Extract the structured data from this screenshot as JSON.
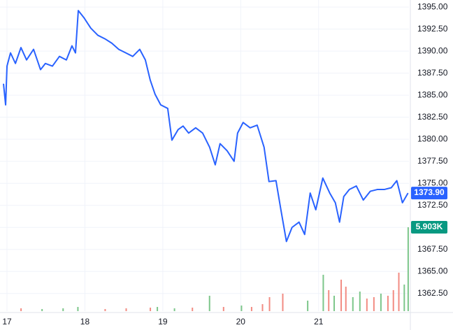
{
  "chart_data": {
    "type": "line",
    "xlim": [
      16.91,
      22.16
    ],
    "xticks": [
      17,
      18,
      19,
      20,
      21
    ],
    "ylim": [
      1360.5,
      1395.8
    ],
    "yticks": [
      {
        "value": 1362.5,
        "label": "1362.50"
      },
      {
        "value": 1365,
        "label": "1365.00"
      },
      {
        "value": 1367.5,
        "label": "1367.50"
      },
      {
        "value": 1370,
        "label": "1370.00"
      },
      {
        "value": 1372.5,
        "label": "1372.50"
      },
      {
        "value": 1375,
        "label": "1375.00"
      },
      {
        "value": 1377.5,
        "label": "1377.50"
      },
      {
        "value": 1380,
        "label": "1380.00"
      },
      {
        "value": 1382.5,
        "label": "1382.50"
      },
      {
        "value": 1385,
        "label": "1385.00"
      },
      {
        "value": 1387.5,
        "label": "1387.50"
      },
      {
        "value": 1390,
        "label": "1390.00"
      },
      {
        "value": 1392.5,
        "label": "1392.50"
      },
      {
        "value": 1395,
        "label": "1395.00"
      }
    ],
    "y2lim": [
      0,
      21890
    ],
    "grid": true,
    "series": [
      {
        "color": "#2962ff",
        "last_label": "1373.90",
        "x": [
          16.955,
          16.982,
          17.0,
          17.045,
          17.108,
          17.179,
          17.251,
          17.341,
          17.43,
          17.493,
          17.583,
          17.673,
          17.762,
          17.834,
          17.879,
          17.915,
          17.987,
          18.076,
          18.166,
          18.256,
          18.345,
          18.435,
          18.525,
          18.614,
          18.704,
          18.776,
          18.839,
          18.901,
          18.973,
          19.063,
          19.117,
          19.197,
          19.26,
          19.332,
          19.422,
          19.511,
          19.601,
          19.673,
          19.735,
          19.825,
          19.915,
          19.96,
          20.031,
          20.121,
          20.211,
          20.3,
          20.363,
          20.453,
          20.516,
          20.587,
          20.659,
          20.749,
          20.821,
          20.892,
          20.964,
          21.054,
          21.143,
          21.215,
          21.269,
          21.323,
          21.395,
          21.484,
          21.574,
          21.664,
          21.753,
          21.843,
          21.933,
          22.004,
          22.076,
          22.148
        ],
        "values": [
          1386.3,
          1383.9,
          1388.3,
          1389.8,
          1388.6,
          1390.4,
          1389.0,
          1390.2,
          1387.9,
          1388.6,
          1388.3,
          1389.4,
          1389.0,
          1390.6,
          1389.8,
          1394.6,
          1393.8,
          1392.6,
          1391.8,
          1391.4,
          1390.9,
          1390.2,
          1389.8,
          1389.4,
          1390.2,
          1389.0,
          1386.7,
          1385.1,
          1383.9,
          1383.5,
          1379.9,
          1381.1,
          1381.5,
          1380.7,
          1381.3,
          1380.7,
          1379.1,
          1377.1,
          1379.5,
          1378.7,
          1377.5,
          1380.7,
          1381.9,
          1381.3,
          1381.6,
          1379.1,
          1375.2,
          1375.3,
          1372.0,
          1368.4,
          1370.0,
          1370.6,
          1369.2,
          1373.9,
          1372.0,
          1375.6,
          1373.9,
          1372.8,
          1370.6,
          1373.5,
          1374.3,
          1374.7,
          1373.1,
          1374.1,
          1374.3,
          1374.3,
          1374.5,
          1375.3,
          1372.8,
          1373.9
        ]
      },
      {
        "type": "bar",
        "axis": "y2",
        "color": "#089981",
        "last_label": "5.903K",
        "x": [
          17.18,
          17.45,
          17.72,
          17.91,
          18.26,
          18.53,
          18.84,
          18.93,
          19.15,
          19.38,
          19.6,
          19.78,
          20.01,
          20.14,
          20.28,
          20.37,
          20.54,
          20.86,
          21.06,
          21.13,
          21.2,
          21.29,
          21.35,
          21.44,
          21.53,
          21.62,
          21.71,
          21.8,
          21.89,
          21.96,
          22.03,
          22.1,
          22.15
        ],
        "values": [
          197,
          148,
          197,
          295,
          148,
          197,
          246,
          295,
          197,
          246,
          1082,
          295,
          394,
          295,
          492,
          984,
          1230,
          738,
          2558,
          1476,
          1082,
          2214,
          1722,
          984,
          1377,
          885,
          984,
          1230,
          1082,
          1476,
          2706,
          1869,
          5903
        ],
        "colors": [
          "#f28b82",
          "#7cc68a",
          "#7cc68a",
          "#7cc68a",
          "#f28b82",
          "#f28b82",
          "#f28b82",
          "#7cc68a",
          "#7cc68a",
          "#f28b82",
          "#7cc68a",
          "#f28b82",
          "#7cc68a",
          "#f28b82",
          "#f28b82",
          "#f28b82",
          "#f28b82",
          "#7cc68a",
          "#7cc68a",
          "#f28b82",
          "#7cc68a",
          "#f28b82",
          "#f28b82",
          "#7cc68a",
          "#7cc68a",
          "#f28b82",
          "#f28b82",
          "#7cc68a",
          "#f28b82",
          "#f28b82",
          "#f28b82",
          "#7cc68a",
          "#7cc68a"
        ]
      }
    ]
  }
}
